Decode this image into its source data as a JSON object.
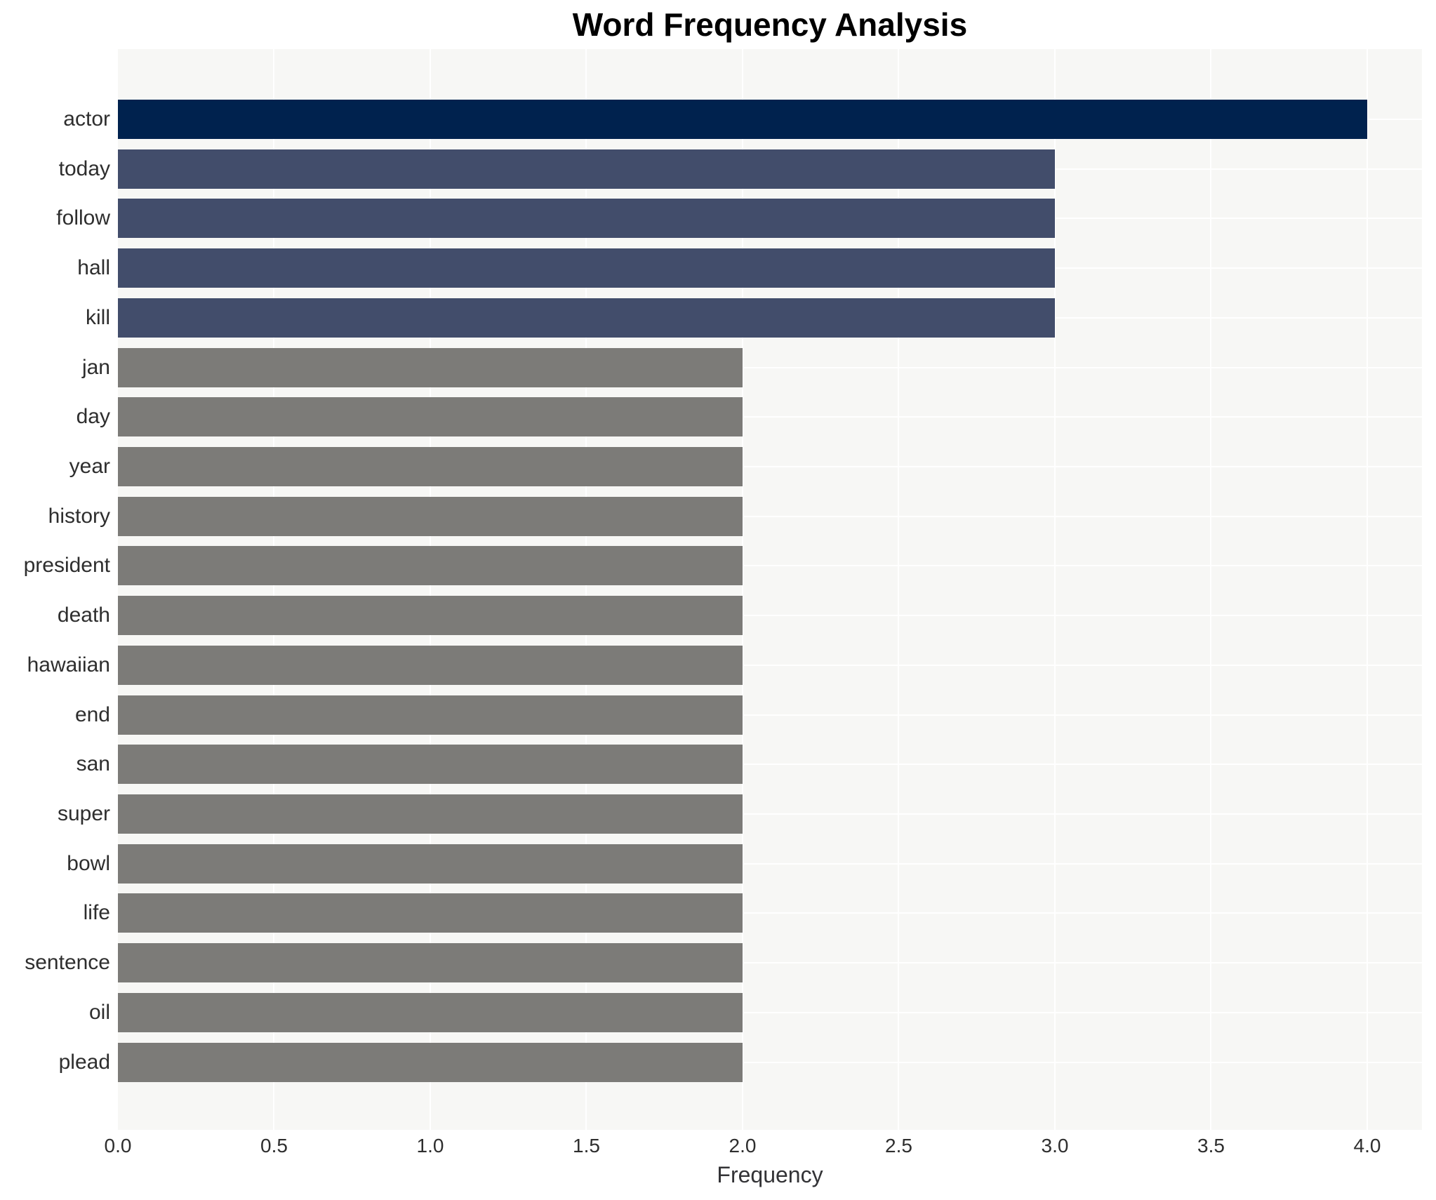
{
  "title": "Word Frequency Analysis",
  "chart_data": {
    "type": "bar",
    "orientation": "horizontal",
    "title": "Word Frequency Analysis",
    "xlabel": "Frequency",
    "ylabel": "",
    "categories": [
      "actor",
      "today",
      "follow",
      "hall",
      "kill",
      "jan",
      "day",
      "year",
      "history",
      "president",
      "death",
      "hawaiian",
      "end",
      "san",
      "super",
      "bowl",
      "life",
      "sentence",
      "oil",
      "plead"
    ],
    "values": [
      4,
      3,
      3,
      3,
      3,
      2,
      2,
      2,
      2,
      2,
      2,
      2,
      2,
      2,
      2,
      2,
      2,
      2,
      2,
      2
    ],
    "bar_colors": [
      "#00224e",
      "#424d6b",
      "#424d6b",
      "#424d6b",
      "#424d6b",
      "#7c7b78",
      "#7c7b78",
      "#7c7b78",
      "#7c7b78",
      "#7c7b78",
      "#7c7b78",
      "#7c7b78",
      "#7c7b78",
      "#7c7b78",
      "#7c7b78",
      "#7c7b78",
      "#7c7b78",
      "#7c7b78",
      "#7c7b78",
      "#7c7b78"
    ],
    "xlim": [
      0,
      4.1753
    ],
    "xticks": [
      0.0,
      0.5,
      1.0,
      1.5,
      2.0,
      2.5,
      3.0,
      3.5,
      4.0
    ],
    "xtick_labels": [
      "0.0",
      "0.5",
      "1.0",
      "1.5",
      "2.0",
      "2.5",
      "3.0",
      "3.5",
      "4.0"
    ],
    "grid": true,
    "legend": false,
    "plot_background": "#f7f7f5",
    "grid_color": "#ffffff",
    "text_color": "#2e2e2e",
    "title_color": "#000000"
  }
}
